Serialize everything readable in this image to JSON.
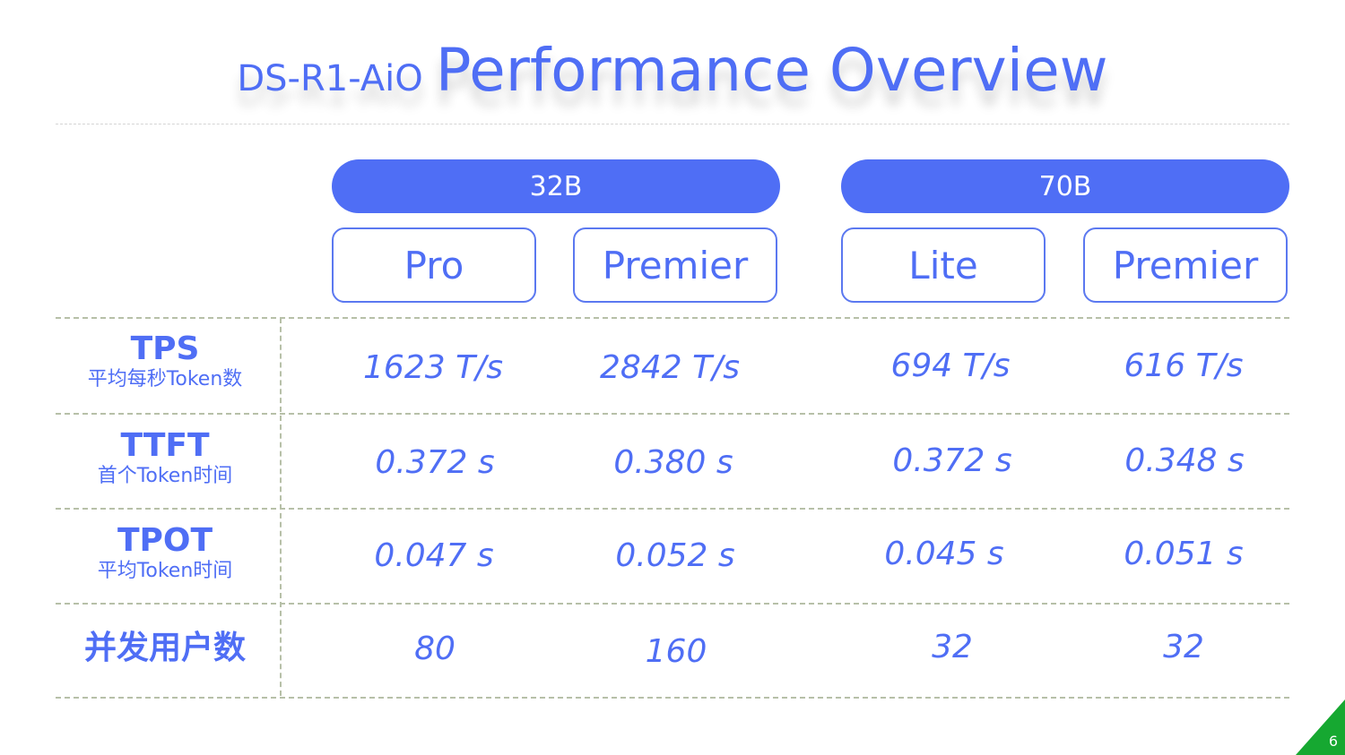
{
  "title": {
    "prefix": "DS-R1-AiO",
    "main": "Performance Overview"
  },
  "groups": [
    {
      "label": "32B",
      "tiers": [
        "Pro",
        "Premier"
      ]
    },
    {
      "label": "70B",
      "tiers": [
        "Lite",
        "Premier"
      ]
    }
  ],
  "rows": [
    {
      "label": "TPS",
      "sublabel": "平均每秒Token数",
      "values": [
        "1623 T/s",
        "2842 T/s",
        "694 T/s",
        "616 T/s"
      ]
    },
    {
      "label": "TTFT",
      "sublabel": "首个Token时间",
      "values": [
        "0.372 s",
        "0.380 s",
        "0.372 s",
        "0.348 s"
      ]
    },
    {
      "label": "TPOT",
      "sublabel": "平均Token时间",
      "values": [
        "0.047 s",
        "0.052 s",
        "0.045 s",
        "0.051 s"
      ]
    },
    {
      "label": "并发用户数",
      "sublabel": "",
      "values": [
        "80",
        "160",
        "32",
        "32"
      ]
    }
  ],
  "page_number": "6",
  "colors": {
    "accent": "#4f6ef5",
    "corner": "#16a831",
    "divider": "#b7c0a8"
  }
}
